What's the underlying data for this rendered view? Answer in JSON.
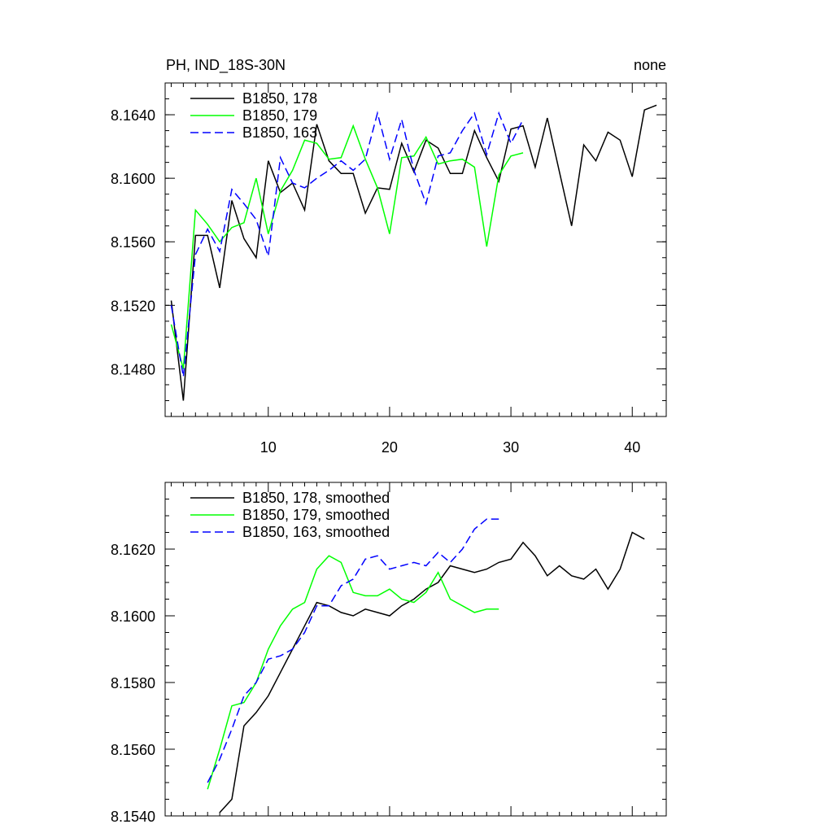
{
  "colors": {
    "s178": "#000000",
    "s179": "#00ff00",
    "s163": "#0000ff"
  },
  "chart_data": [
    {
      "type": "line",
      "title": "PH, IND_18S-30N",
      "right_title": "none",
      "xlim": [
        1.5,
        42.8
      ],
      "ylim": [
        8.145,
        8.166
      ],
      "xticks": [
        10,
        20,
        30,
        40
      ],
      "xtick_labels": [
        "10",
        "20",
        "30",
        "40"
      ],
      "yticks": [
        8.148,
        8.152,
        8.156,
        8.16,
        8.164
      ],
      "ytick_labels": [
        "8.1480",
        "8.1520",
        "8.1560",
        "8.1600",
        "8.1640"
      ],
      "legend_position": "top-left",
      "series": [
        {
          "name": "B1850, 178",
          "color": "#000000",
          "dash": false,
          "x": [
            2,
            3,
            4,
            5,
            6,
            7,
            8,
            9,
            10,
            11,
            12,
            13,
            14,
            15,
            16,
            17,
            18,
            19,
            20,
            21,
            22,
            23,
            24,
            25,
            26,
            27,
            28,
            29,
            30,
            31,
            32,
            33,
            34,
            35,
            36,
            37,
            38,
            39,
            40,
            41,
            42
          ],
          "values": [
            8.1523,
            8.146,
            8.1564,
            8.1564,
            8.1531,
            8.1586,
            8.1562,
            8.155,
            8.1611,
            8.1591,
            8.1597,
            8.158,
            8.1634,
            8.1611,
            8.1603,
            8.1603,
            8.1578,
            8.1594,
            8.1593,
            8.1622,
            8.1604,
            8.1624,
            8.1619,
            8.1603,
            8.1603,
            8.163,
            8.1613,
            8.1598,
            8.1631,
            8.1633,
            8.1607,
            8.1638,
            8.1604,
            8.157,
            8.1621,
            8.1611,
            8.1629,
            8.1624,
            8.1601,
            8.1643,
            8.1646
          ]
        },
        {
          "name": "B1850, 179",
          "color": "#00ff00",
          "dash": false,
          "x": [
            2,
            3,
            4,
            5,
            6,
            7,
            8,
            9,
            10,
            11,
            12,
            13,
            14,
            15,
            16,
            17,
            18,
            19,
            20,
            21,
            22,
            23,
            24,
            25,
            26,
            27,
            28,
            29,
            30,
            31
          ],
          "values": [
            8.1508,
            8.148,
            8.158,
            8.1571,
            8.156,
            8.1569,
            8.1572,
            8.16,
            8.1565,
            8.1592,
            8.1605,
            8.1624,
            8.1622,
            8.1612,
            8.1613,
            8.1633,
            8.1612,
            8.1594,
            8.1565,
            8.1613,
            8.1614,
            8.1626,
            8.1609,
            8.1611,
            8.1612,
            8.1607,
            8.1557,
            8.1602,
            8.1614,
            8.1616
          ]
        },
        {
          "name": "B1850, 163",
          "color": "#0000ff",
          "dash": true,
          "x": [
            2,
            3,
            4,
            5,
            6,
            7,
            8,
            9,
            10,
            11,
            12,
            13,
            14,
            15,
            16,
            17,
            18,
            19,
            20,
            21,
            22,
            23,
            24,
            25,
            26,
            27,
            28,
            29,
            30,
            31
          ],
          "values": [
            8.152,
            8.1475,
            8.1552,
            8.1568,
            8.1554,
            8.1593,
            8.1584,
            8.1574,
            8.1551,
            8.1613,
            8.1597,
            8.1594,
            8.16,
            8.1605,
            8.1611,
            8.1605,
            8.1612,
            8.1641,
            8.1612,
            8.1637,
            8.1605,
            8.1584,
            8.1614,
            8.1616,
            8.163,
            8.1641,
            8.1615,
            8.1641,
            8.1622,
            8.1637
          ]
        }
      ]
    },
    {
      "type": "line",
      "xlim": [
        1.5,
        42.8
      ],
      "ylim": [
        8.154,
        8.164
      ],
      "xticks": [
        10,
        20,
        30,
        40
      ],
      "yticks": [
        8.154,
        8.156,
        8.158,
        8.16,
        8.162
      ],
      "ytick_labels": [
        "8.1540",
        "8.1560",
        "8.1580",
        "8.1600",
        "8.1620"
      ],
      "legend_position": "top-left",
      "series": [
        {
          "name": "B1850, 178, smoothed",
          "color": "#000000",
          "dash": false,
          "x": [
            6,
            7,
            8,
            9,
            10,
            11,
            12,
            13,
            14,
            15,
            16,
            17,
            18,
            19,
            20,
            21,
            22,
            23,
            24,
            25,
            26,
            27,
            28,
            29,
            30,
            31,
            32,
            33,
            34,
            35,
            36,
            37,
            38,
            39,
            40,
            41
          ],
          "values": [
            8.1541,
            8.1545,
            8.1567,
            8.1571,
            8.1576,
            8.1583,
            8.159,
            8.1597,
            8.1604,
            8.1603,
            8.1601,
            8.16,
            8.1602,
            8.1601,
            8.16,
            8.1603,
            8.1605,
            8.1608,
            8.161,
            8.1615,
            8.1614,
            8.1613,
            8.1614,
            8.1616,
            8.1617,
            8.1622,
            8.1618,
            8.1612,
            8.1615,
            8.1612,
            8.1611,
            8.1614,
            8.1608,
            8.1614,
            8.1625,
            8.1623
          ]
        },
        {
          "name": "B1850, 179, smoothed",
          "color": "#00ff00",
          "dash": false,
          "x": [
            5,
            6,
            7,
            8,
            9,
            10,
            11,
            12,
            13,
            14,
            15,
            16,
            17,
            18,
            19,
            20,
            21,
            22,
            23,
            24,
            25,
            26,
            27,
            28,
            29
          ],
          "values": [
            8.1548,
            8.156,
            8.1573,
            8.1574,
            8.158,
            8.159,
            8.1597,
            8.1602,
            8.1604,
            8.1614,
            8.1618,
            8.1616,
            8.1607,
            8.1606,
            8.1606,
            8.1608,
            8.1605,
            8.1604,
            8.1607,
            8.1613,
            8.1605,
            8.1603,
            8.1601,
            8.1602,
            8.1602
          ]
        },
        {
          "name": "B1850, 163, smoothed",
          "color": "#0000ff",
          "dash": true,
          "x": [
            5,
            6,
            7,
            8,
            9,
            10,
            11,
            12,
            13,
            14,
            15,
            16,
            17,
            18,
            19,
            20,
            21,
            22,
            23,
            24,
            25,
            26,
            27,
            28,
            29
          ],
          "values": [
            8.155,
            8.1557,
            8.1566,
            8.1576,
            8.158,
            8.1587,
            8.1588,
            8.159,
            8.1595,
            8.1603,
            8.1603,
            8.1609,
            8.1611,
            8.1617,
            8.1618,
            8.1614,
            8.1615,
            8.1616,
            8.1615,
            8.1619,
            8.1616,
            8.162,
            8.1626,
            8.1629,
            8.1629
          ]
        }
      ]
    }
  ]
}
